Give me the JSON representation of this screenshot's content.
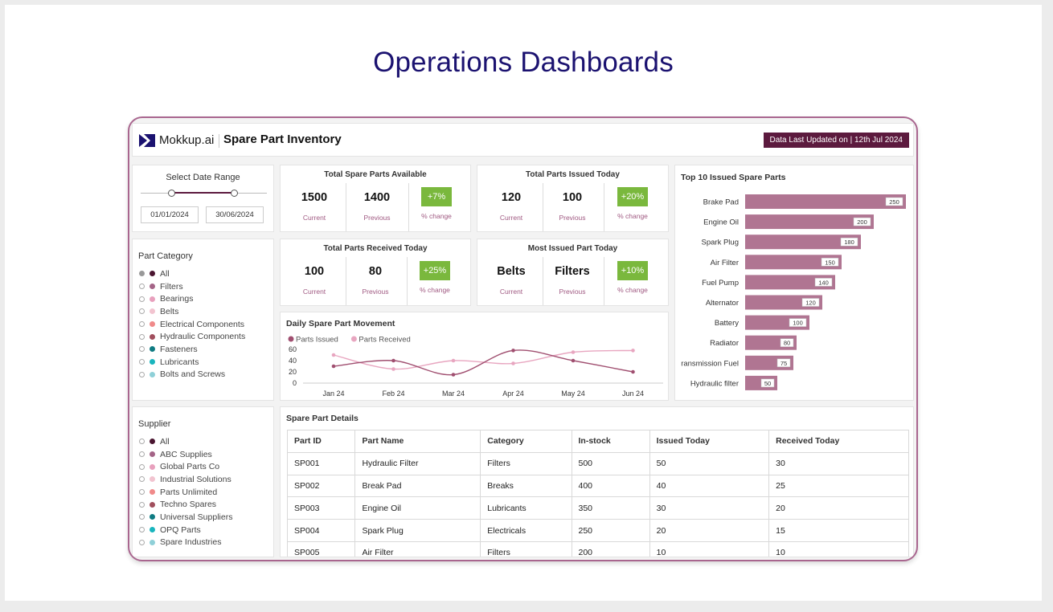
{
  "page_title": "Operations Dashboards",
  "header": {
    "logo_text": "Mokkup.ai",
    "app_title": "Spare Part Inventory",
    "updated": "Data Last Updated on | 12th Jul 2024"
  },
  "date_range": {
    "title": "Select Date Range",
    "start": "01/01/2024",
    "end": "30/06/2024"
  },
  "part_category": {
    "title": "Part Category",
    "items": [
      {
        "label": "All",
        "color": "#4a1530",
        "selected": true
      },
      {
        "label": "Filters",
        "color": "#a46487"
      },
      {
        "label": "Bearings",
        "color": "#e8a0bd"
      },
      {
        "label": "Belts",
        "color": "#f2c4d0"
      },
      {
        "label": "Electrical Components",
        "color": "#f08a8a"
      },
      {
        "label": "Hydraulic Components",
        "color": "#a14f5d"
      },
      {
        "label": "Fasteners",
        "color": "#0f7b82"
      },
      {
        "label": "Lubricants",
        "color": "#19b5be"
      },
      {
        "label": "Bolts and Screws",
        "color": "#8fd0d8"
      }
    ]
  },
  "supplier": {
    "title": "Supplier",
    "items": [
      {
        "label": "All",
        "color": "#4a1530"
      },
      {
        "label": "ABC Supplies",
        "color": "#a46487"
      },
      {
        "label": "Global Parts Co",
        "color": "#e8a0bd"
      },
      {
        "label": "Industrial Solutions",
        "color": "#f2c4d0"
      },
      {
        "label": "Parts Unlimited",
        "color": "#f08a8a"
      },
      {
        "label": "Techno Spares",
        "color": "#a14f5d"
      },
      {
        "label": "Universal Suppliers",
        "color": "#0f7b82"
      },
      {
        "label": "OPQ Parts",
        "color": "#19b5be"
      },
      {
        "label": "Spare Industries",
        "color": "#8fd0d8"
      }
    ]
  },
  "kpis": {
    "available": {
      "title": "Total Spare Parts Available",
      "current": "1500",
      "previous": "1400",
      "change": "+7%"
    },
    "issued": {
      "title": "Total Parts Issued Today",
      "current": "120",
      "previous": "100",
      "change": "+20%"
    },
    "received": {
      "title": "Total Parts Received Today",
      "current": "100",
      "previous": "80",
      "change": "+25%"
    },
    "most_issued": {
      "title": "Most Issued Part Today",
      "current": "Belts",
      "previous": "Filters",
      "change": "+10%"
    },
    "labels": {
      "current": "Current",
      "previous": "Previous",
      "change": "% change"
    }
  },
  "line_chart_title": "Daily Spare Part Movement",
  "bar_chart_title": "Top 10 Issued Spare Parts",
  "chart_data": [
    {
      "type": "line",
      "title": "Daily Spare Part Movement",
      "categories": [
        "Jan 24",
        "Feb 24",
        "Mar 24",
        "Apr 24",
        "May 24",
        "Jun 24"
      ],
      "ylim": [
        0,
        60
      ],
      "yticks": [
        0,
        20,
        40,
        60
      ],
      "series": [
        {
          "name": "Parts Issued",
          "color": "#a04f70",
          "values": [
            30,
            40,
            15,
            58,
            40,
            20
          ]
        },
        {
          "name": "Parts Received",
          "color": "#e8a6c0",
          "values": [
            50,
            25,
            40,
            35,
            55,
            58
          ]
        }
      ]
    },
    {
      "type": "bar",
      "orientation": "horizontal",
      "title": "Top 10 Issued Spare Parts",
      "categories": [
        "Brake Pad",
        "Engine Oil",
        "Spark Plug",
        "Air Filter",
        "Fuel Pump",
        "Alternator",
        "Battery",
        "Radiator",
        "ransmission Fuel",
        "Hydraulic filter"
      ],
      "values": [
        250,
        200,
        180,
        150,
        140,
        120,
        100,
        80,
        75,
        50
      ],
      "color": "#b07592",
      "xlim": [
        0,
        250
      ]
    }
  ],
  "table": {
    "title": "Spare Part Details",
    "columns": [
      "Part ID",
      "Part Name",
      "Category",
      "In-stock",
      "Issued Today",
      "Received Today"
    ],
    "rows": [
      [
        "SP001",
        "Hydraulic Filter",
        "Filters",
        "500",
        "50",
        "30"
      ],
      [
        "SP002",
        "Break Pad",
        "Breaks",
        "400",
        "40",
        "25"
      ],
      [
        "SP003",
        "Engine Oil",
        "Lubricants",
        "350",
        "30",
        "20"
      ],
      [
        "SP004",
        "Spark Plug",
        "Electricals",
        "250",
        "20",
        "15"
      ],
      [
        "SP005",
        "Air Filter",
        "Filters",
        "200",
        "10",
        "10"
      ]
    ]
  }
}
